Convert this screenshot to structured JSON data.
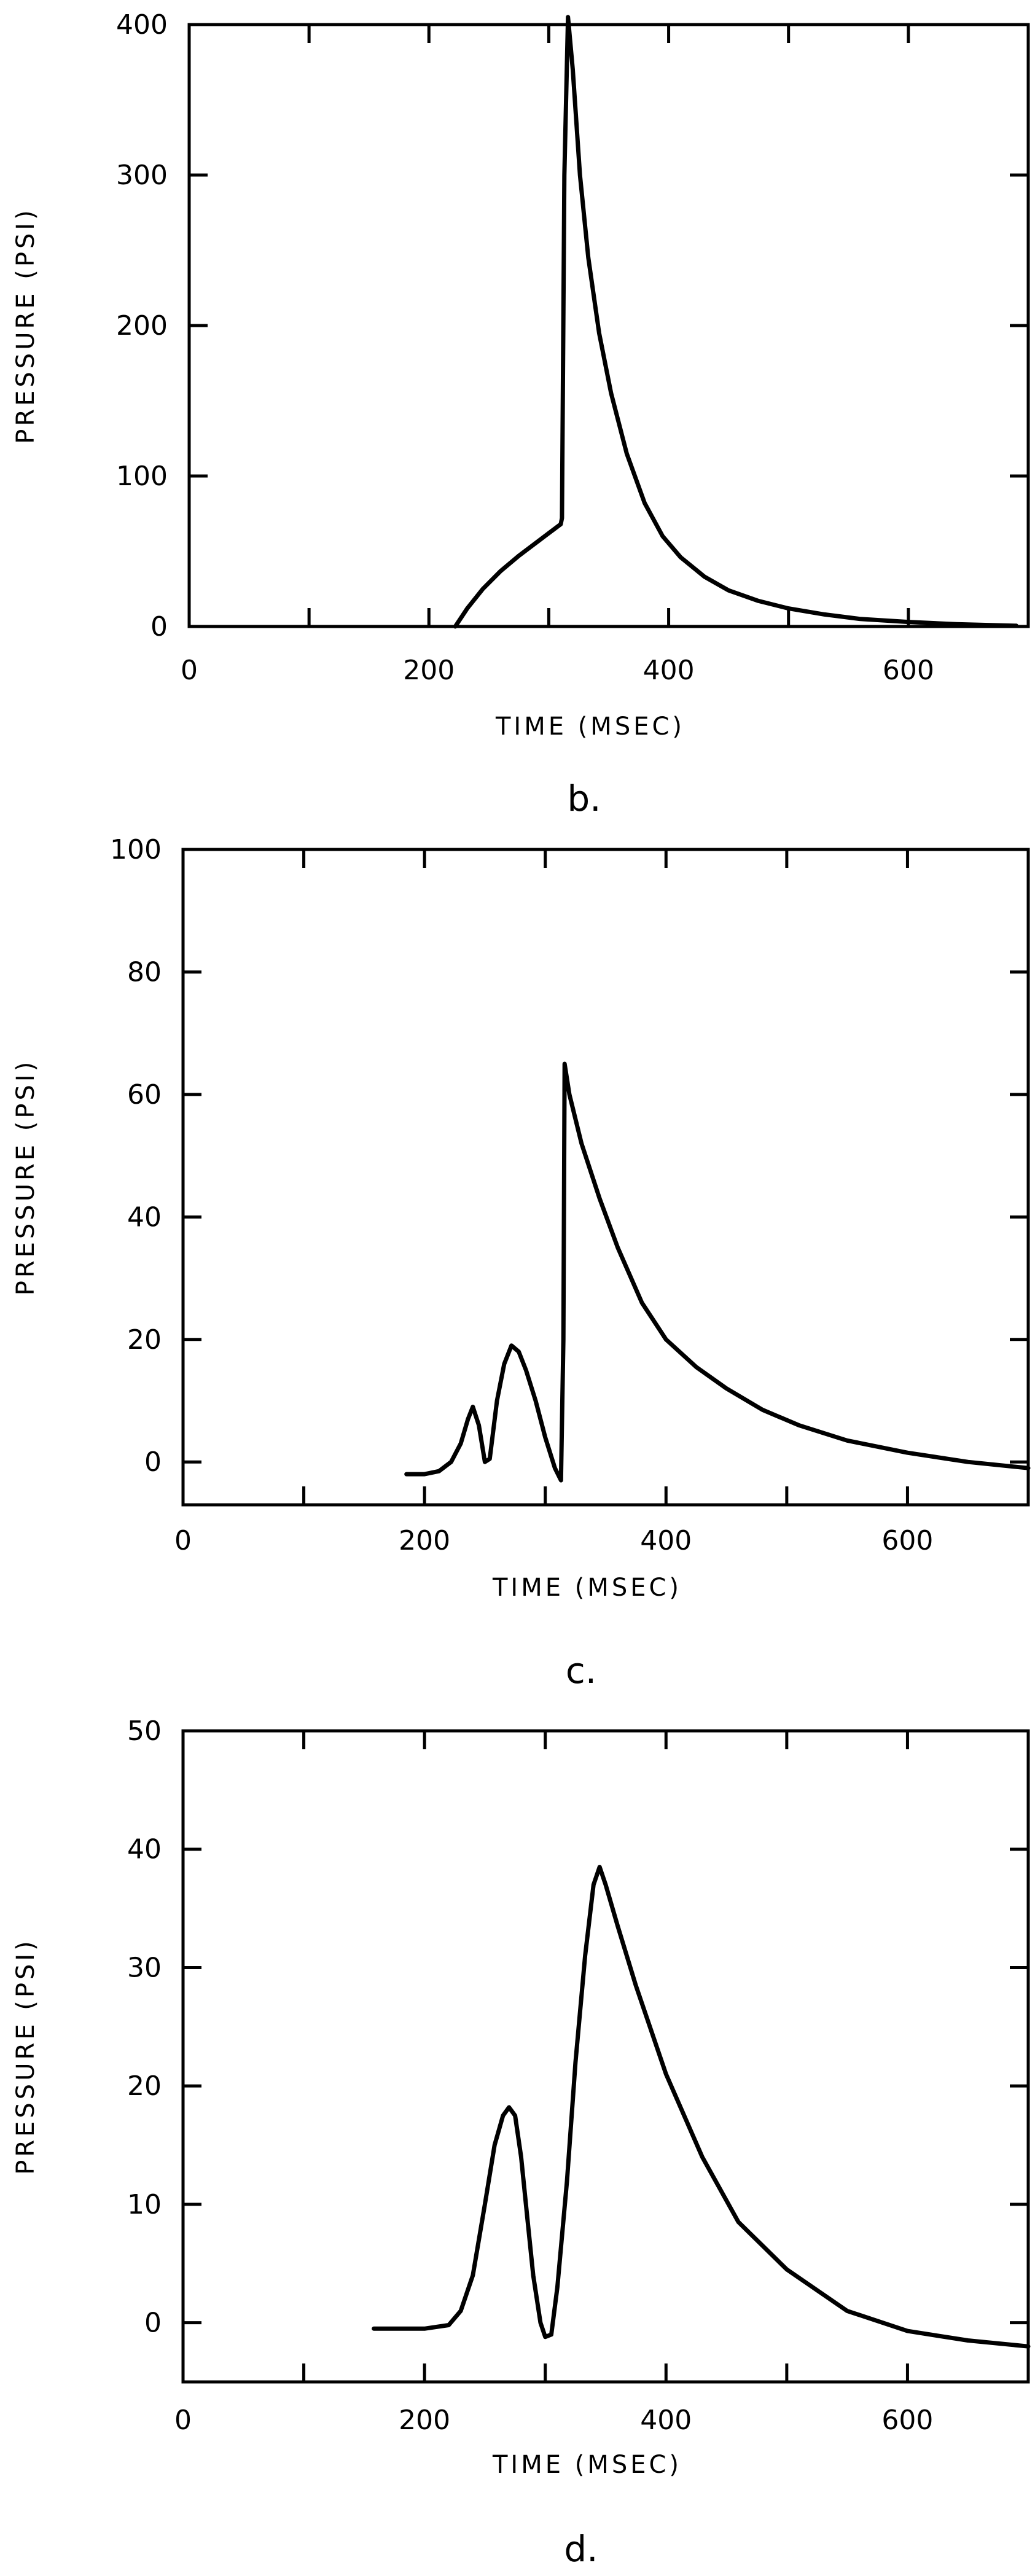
{
  "chart_data": [
    {
      "type": "line",
      "caption": "b.",
      "xlabel": "TIME (MSEC)",
      "ylabel": "PRESSURE (PSI)",
      "xlim": [
        0,
        700
      ],
      "ylim": [
        0,
        400
      ],
      "xticks": [
        0,
        100,
        200,
        300,
        400,
        500,
        600,
        700
      ],
      "xtick_labels": [
        "0",
        "200",
        "400",
        "600"
      ],
      "xtick_label_values": [
        0,
        200,
        400,
        600
      ],
      "yticks": [
        0,
        100,
        200,
        300,
        400
      ],
      "ytick_labels": [
        "0",
        "100",
        "200",
        "300",
        "400"
      ],
      "grid": false,
      "series": [
        {
          "x": [
            222,
            232,
            245,
            260,
            275,
            290,
            300,
            310,
            311,
            313,
            316,
            320,
            326,
            333,
            342,
            352,
            365,
            380,
            395,
            410,
            430,
            450,
            475,
            500,
            530,
            560,
            600,
            640,
            690
          ],
          "y": [
            0,
            12,
            25,
            37,
            47,
            56,
            62,
            68,
            72,
            300,
            405,
            370,
            300,
            245,
            195,
            155,
            115,
            82,
            60,
            46,
            33,
            24,
            17,
            12,
            8,
            5,
            3,
            1.5,
            0.5
          ]
        }
      ]
    },
    {
      "type": "line",
      "caption": "c.",
      "xlabel": "TIME (MSEC)",
      "ylabel": "PRESSURE (PSI)",
      "xlim": [
        0,
        700
      ],
      "ylim": [
        -7,
        100
      ],
      "xticks": [
        0,
        100,
        200,
        300,
        400,
        500,
        600,
        700
      ],
      "xtick_labels": [
        "0",
        "200",
        "400",
        "600"
      ],
      "xtick_label_values": [
        0,
        200,
        400,
        600
      ],
      "yticks": [
        0,
        20,
        40,
        60,
        80,
        100
      ],
      "ytick_labels": [
        "0",
        "20",
        "40",
        "60",
        "80",
        "100"
      ],
      "grid": false,
      "series": [
        {
          "x": [
            185,
            200,
            212,
            222,
            230,
            236,
            240,
            245,
            250,
            254,
            260,
            266,
            272,
            278,
            284,
            292,
            300,
            308,
            313,
            315,
            316,
            320,
            330,
            345,
            360,
            380,
            400,
            425,
            450,
            480,
            510,
            550,
            600,
            650,
            700
          ],
          "y": [
            -2,
            -2,
            -1.5,
            0,
            3,
            7,
            9,
            6,
            0,
            0.5,
            10,
            16,
            19,
            18,
            15,
            10,
            4,
            -1,
            -3,
            20,
            65,
            60,
            52,
            43,
            35,
            26,
            20,
            15.5,
            12,
            8.5,
            6,
            3.5,
            1.5,
            0,
            -1
          ]
        }
      ]
    },
    {
      "type": "line",
      "caption": "d.",
      "xlabel": "TIME (MSEC)",
      "ylabel": "PRESSURE (PSI)",
      "xlim": [
        0,
        700
      ],
      "ylim": [
        -5,
        50
      ],
      "xticks": [
        0,
        100,
        200,
        300,
        400,
        500,
        600,
        700
      ],
      "xtick_labels": [
        "0",
        "200",
        "400",
        "600"
      ],
      "xtick_label_values": [
        0,
        200,
        400,
        600
      ],
      "yticks": [
        0,
        10,
        20,
        30,
        40,
        50
      ],
      "ytick_labels": [
        "0",
        "10",
        "20",
        "30",
        "40",
        "50"
      ],
      "grid": false,
      "series": [
        {
          "x": [
            158,
            200,
            220,
            230,
            240,
            250,
            258,
            265,
            270,
            275,
            280,
            285,
            290,
            296,
            300,
            305,
            310,
            318,
            325,
            333,
            340,
            345,
            350,
            360,
            375,
            400,
            430,
            460,
            500,
            550,
            600,
            650,
            700
          ],
          "y": [
            -0.5,
            -0.5,
            -0.2,
            1,
            4,
            10,
            15,
            17.5,
            18.2,
            17.5,
            14,
            9,
            4,
            0,
            -1.2,
            -1,
            3,
            12,
            22,
            31,
            37,
            38.5,
            37,
            33.5,
            28.5,
            21,
            14,
            8.5,
            4.5,
            1,
            -0.7,
            -1.5,
            -2
          ]
        }
      ]
    }
  ]
}
